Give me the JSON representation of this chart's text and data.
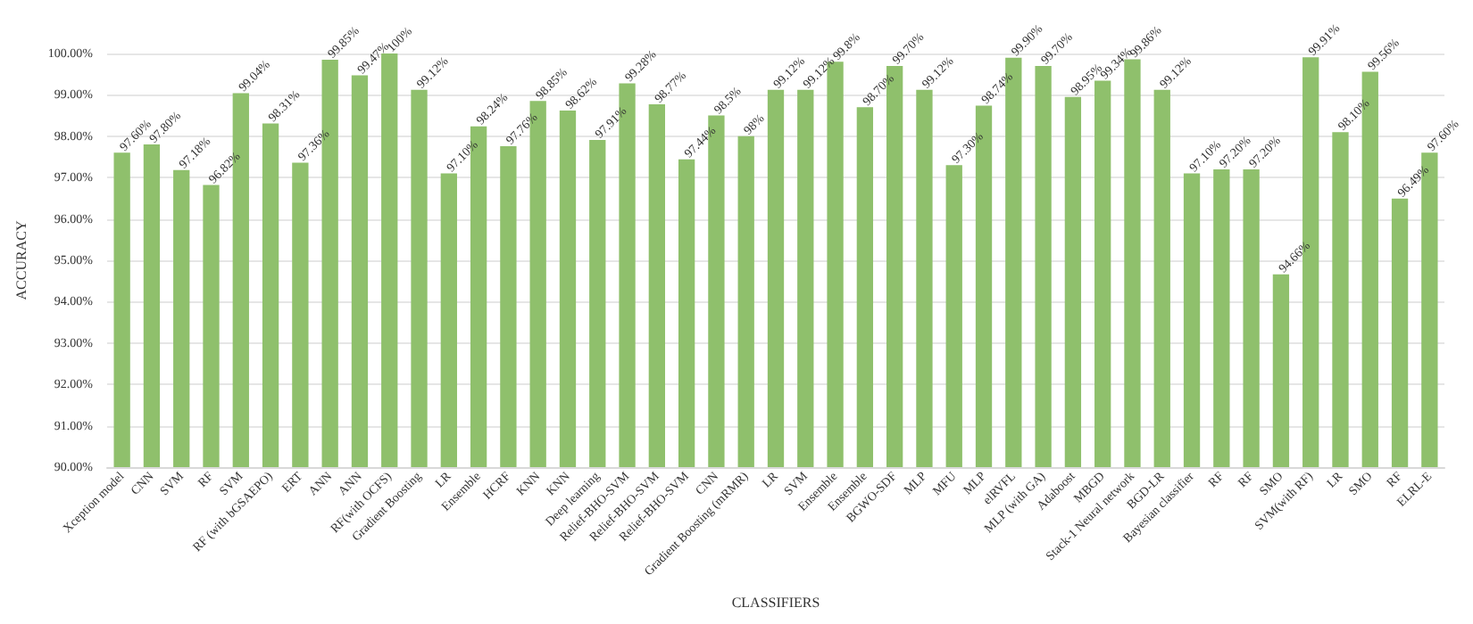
{
  "chart_data": {
    "type": "bar",
    "xlabel": "CLASSIFIERS",
    "ylabel": "ACCURACY",
    "categories": [
      "Xception model",
      "CNN",
      "SVM",
      "RF",
      "SVM",
      "RF (with bGSAEPO)",
      "ERT",
      "ANN",
      "ANN",
      "RF(with OCFS)",
      "Gradient Boosting",
      "LR",
      "Ensemble",
      "HCRF",
      "KNN",
      "KNN",
      "Deep learning",
      "Relief-BHO-SVM",
      "Relief-BHO-SVM",
      "Relief-BHO-SVM",
      "CNN",
      "Gradient Boosting (mRMR)",
      "LR",
      "SVM",
      "Ensemble",
      "Ensemble",
      "BGWO-SDF",
      "MLP",
      "MFU",
      "MLP",
      "elRVFL",
      "MLP (with GA)",
      "Adaboost",
      "MBGD",
      "Stack-1 Neural network",
      "BGD-LR",
      "Bayesian classifier",
      "RF",
      "RF",
      "SMO",
      "SVM(with RF)",
      "LR",
      "SMO",
      "RF",
      "ELRL-E"
    ],
    "values": [
      97.6,
      97.8,
      97.18,
      96.82,
      99.04,
      98.31,
      97.36,
      99.85,
      99.47,
      100,
      99.12,
      97.1,
      98.24,
      97.76,
      98.85,
      98.62,
      97.91,
      99.28,
      98.77,
      97.44,
      98.5,
      98,
      99.12,
      99.12,
      99.8,
      98.7,
      99.7,
      99.12,
      97.3,
      98.74,
      99.9,
      99.7,
      98.95,
      99.34,
      99.86,
      99.12,
      97.1,
      97.2,
      97.2,
      94.66,
      99.91,
      98.1,
      99.56,
      96.49,
      97.6
    ],
    "value_labels": [
      "97.60%",
      "97.80%",
      "97.18%",
      "96.82%",
      "99.04%",
      "98.31%",
      "97.36%",
      "99.85%",
      "99.47%",
      "100%",
      "99.12%",
      "97.10%",
      "98.24%",
      "97.76%",
      "98.85%",
      "98.62%",
      "97.91%",
      "99.28%",
      "98.77%",
      "97.44%",
      "98.5%",
      "98%",
      "99.12%",
      "99.12%",
      "99.8%",
      "98.70%",
      "99.70%",
      "99.12%",
      "97.30%",
      "98.74%",
      "99.90%",
      "99.70%",
      "98.95%",
      "99.34%",
      "99.86%",
      "99.12%",
      "97.10%",
      "97.20%",
      "97.20%",
      "94.66%",
      "99.91%",
      "98.10%",
      "99.56%",
      "96.49%",
      "97.60%"
    ],
    "color": "#8fc06c",
    "ylim": [
      90,
      100
    ],
    "yticks": [
      {
        "value": 90,
        "label": "90.00%"
      },
      {
        "value": 91,
        "label": "91.00%"
      },
      {
        "value": 92,
        "label": "92.00%"
      },
      {
        "value": 93,
        "label": "93.00%"
      },
      {
        "value": 94,
        "label": "94.00%"
      },
      {
        "value": 95,
        "label": "95.00%"
      },
      {
        "value": 96,
        "label": "96.00%"
      },
      {
        "value": 97,
        "label": "97.00%"
      },
      {
        "value": 98,
        "label": "98.00%"
      },
      {
        "value": 99,
        "label": "99.00%"
      },
      {
        "value": 100,
        "label": "100.00%"
      }
    ],
    "grid": "y"
  }
}
